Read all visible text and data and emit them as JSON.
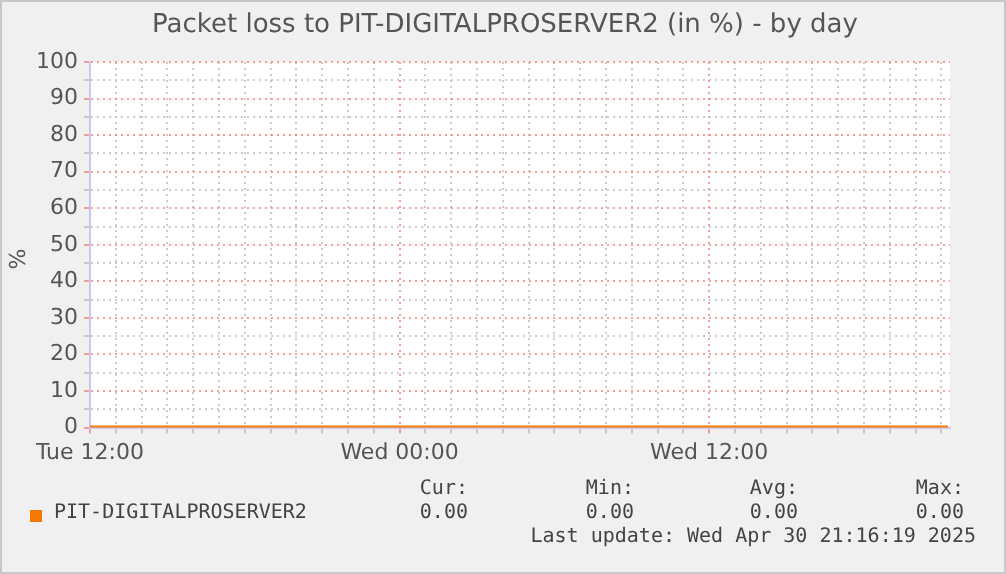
{
  "chart_data": {
    "type": "line",
    "title": "Packet loss to PIT-DIGITALPROSERVER2 (in %) - by day",
    "ylabel": "%",
    "x": [
      "2025-04-29T12:00",
      "2025-04-30T21:15"
    ],
    "series": [
      {
        "name": "PIT-DIGITALPROSERVER2",
        "color": "#f57900",
        "values": [
          0,
          0
        ]
      }
    ],
    "xlim": [
      "2025-04-29T12:00",
      "2025-04-30T21:20"
    ],
    "xticks": [
      {
        "value": "2025-04-29T12:00",
        "label": "Tue 12:00"
      },
      {
        "value": "2025-04-29T13:00",
        "label": null
      },
      {
        "value": "2025-04-29T14:00",
        "label": null
      },
      {
        "value": "2025-04-29T15:00",
        "label": null
      },
      {
        "value": "2025-04-29T16:00",
        "label": null
      },
      {
        "value": "2025-04-29T17:00",
        "label": null
      },
      {
        "value": "2025-04-29T18:00",
        "label": null
      },
      {
        "value": "2025-04-29T19:00",
        "label": null
      },
      {
        "value": "2025-04-29T20:00",
        "label": null
      },
      {
        "value": "2025-04-29T21:00",
        "label": null
      },
      {
        "value": "2025-04-29T22:00",
        "label": null
      },
      {
        "value": "2025-04-29T23:00",
        "label": null
      },
      {
        "value": "2025-04-30T00:00",
        "label": "Wed 00:00"
      },
      {
        "value": "2025-04-30T01:00",
        "label": null
      },
      {
        "value": "2025-04-30T02:00",
        "label": null
      },
      {
        "value": "2025-04-30T03:00",
        "label": null
      },
      {
        "value": "2025-04-30T04:00",
        "label": null
      },
      {
        "value": "2025-04-30T05:00",
        "label": null
      },
      {
        "value": "2025-04-30T06:00",
        "label": null
      },
      {
        "value": "2025-04-30T07:00",
        "label": null
      },
      {
        "value": "2025-04-30T08:00",
        "label": null
      },
      {
        "value": "2025-04-30T09:00",
        "label": null
      },
      {
        "value": "2025-04-30T10:00",
        "label": null
      },
      {
        "value": "2025-04-30T11:00",
        "label": null
      },
      {
        "value": "2025-04-30T12:00",
        "label": "Wed 12:00"
      },
      {
        "value": "2025-04-30T13:00",
        "label": null
      },
      {
        "value": "2025-04-30T14:00",
        "label": null
      },
      {
        "value": "2025-04-30T15:00",
        "label": null
      },
      {
        "value": "2025-04-30T16:00",
        "label": null
      },
      {
        "value": "2025-04-30T17:00",
        "label": null
      },
      {
        "value": "2025-04-30T18:00",
        "label": null
      },
      {
        "value": "2025-04-30T19:00",
        "label": null
      },
      {
        "value": "2025-04-30T20:00",
        "label": null
      },
      {
        "value": "2025-04-30T21:00",
        "label": null
      }
    ],
    "ylim": [
      0,
      100
    ],
    "yticks": [
      0,
      {
        "value": 5,
        "label": null
      },
      10,
      {
        "value": 15,
        "label": null
      },
      20,
      {
        "value": 25,
        "label": null
      },
      30,
      {
        "value": 35,
        "label": null
      },
      40,
      {
        "value": 45,
        "label": null
      },
      50,
      {
        "value": 55,
        "label": null
      },
      60,
      {
        "value": 65,
        "label": null
      },
      70,
      {
        "value": 75,
        "label": null
      },
      80,
      {
        "value": 85,
        "label": null
      },
      90,
      {
        "value": 95,
        "label": null
      },
      100
    ],
    "grid": true,
    "legend": "bottom left",
    "marker": "none",
    "line_style": "solid",
    "annotations": [
      "Cur:",
      "Min:",
      "Avg:",
      "Max:",
      "0.00",
      "0.00",
      "0.00",
      "0.00",
      "Last update: Wed Apr 30 21:16:19 2025"
    ]
  }
}
